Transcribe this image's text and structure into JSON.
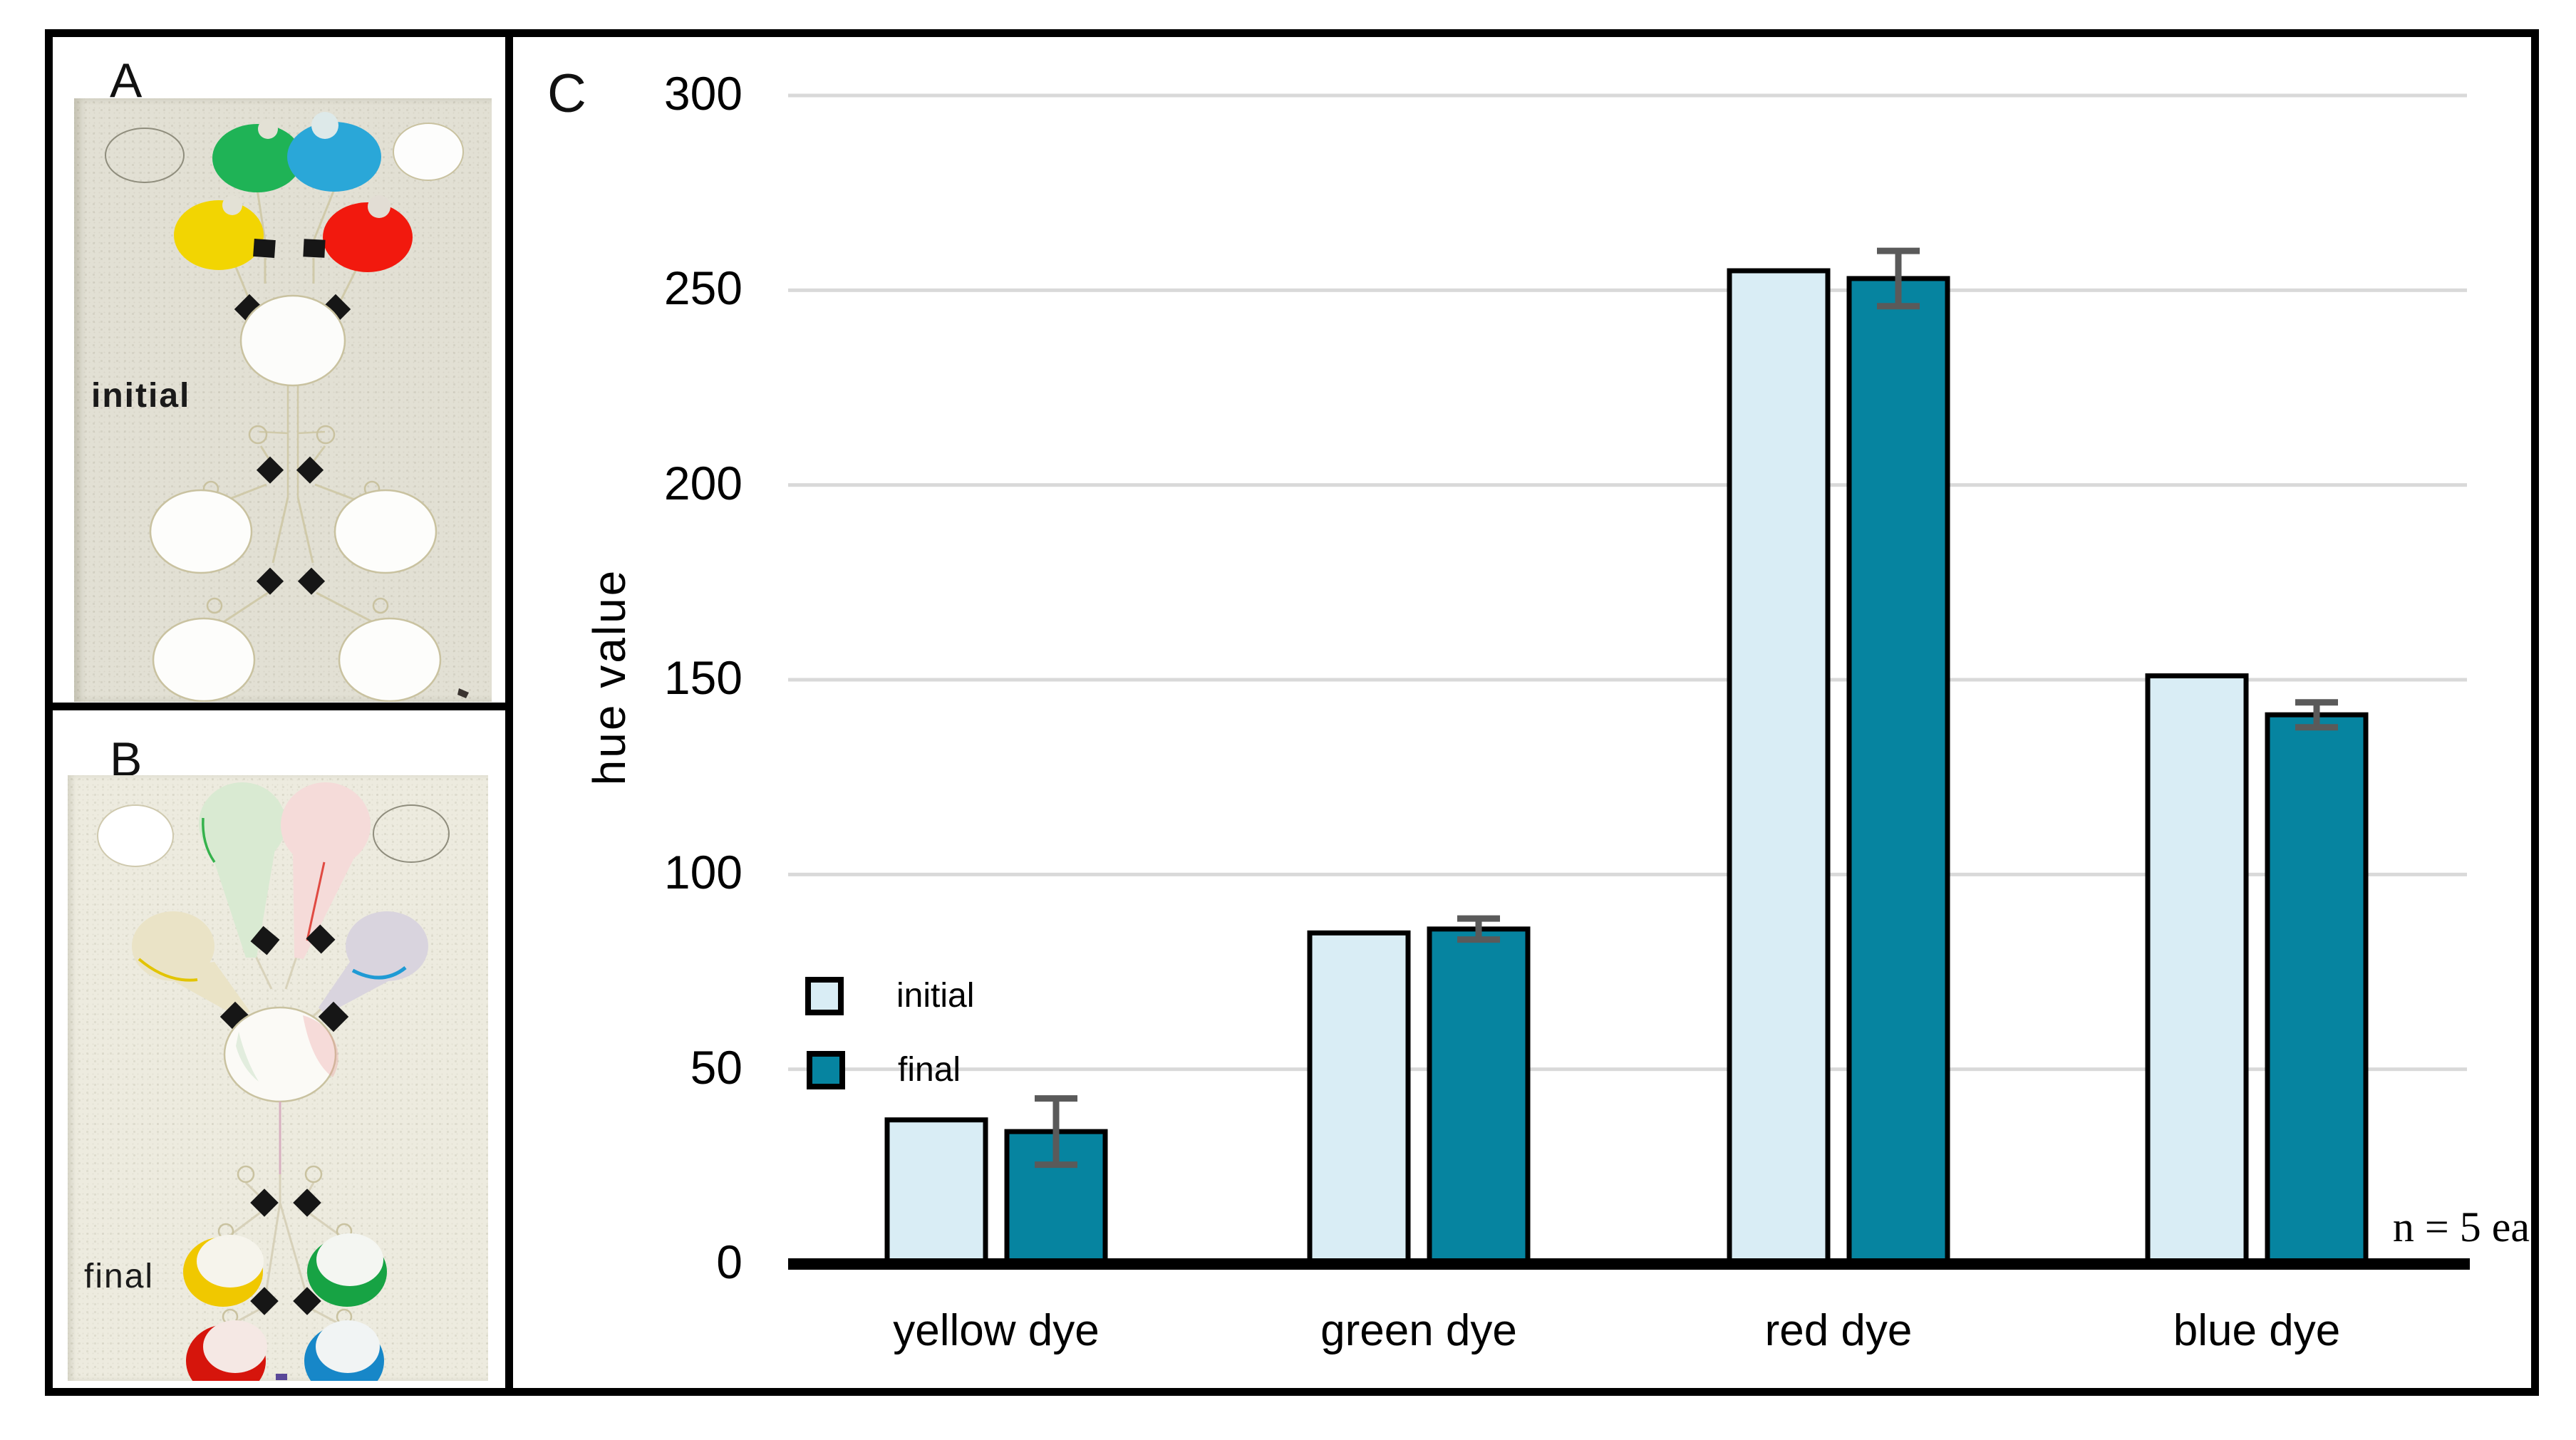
{
  "figure": {
    "panel_a": {
      "label": "A",
      "annotation": "initial",
      "description": "paper microfluidic device scan, initial state",
      "dye_colors": {
        "green": "#1fb356",
        "blue": "#2aa7d8",
        "yellow": "#f2d502",
        "red": "#f2190e"
      }
    },
    "panel_b": {
      "label": "B",
      "annotation": "final",
      "description": "paper microfluidic device scan, final state",
      "dye_colors": {
        "yellow": "#f0c800",
        "green": "#17a344",
        "red": "#d6150c",
        "blue": "#1787c8"
      }
    },
    "panel_c": {
      "label": "C",
      "note": "n = 5 ea",
      "ylabel": "hue value"
    }
  },
  "chart_data": {
    "type": "bar",
    "title": "",
    "categories": [
      "yellow dye",
      "green dye",
      "red dye",
      "blue dye"
    ],
    "series": [
      {
        "name": "initial",
        "color": "#d9edf5",
        "values": [
          37,
          85,
          255,
          151
        ]
      },
      {
        "name": "final",
        "color": "#0684a0",
        "values": [
          34,
          86,
          253,
          141
        ],
        "errors": [
          8.5,
          2.7,
          7.1,
          3.2
        ]
      }
    ],
    "xlabel": "",
    "ylabel": "hue value",
    "ylim": [
      0,
      300
    ],
    "yticks": [
      0,
      50,
      100,
      150,
      200,
      250,
      300
    ],
    "grid": true,
    "gridline_color": "#d9d9d9",
    "bar_border_color": "#000000",
    "error_bar_color": "#5a5a5a",
    "legend_position": "inside-left",
    "annotation": "n = 5 ea"
  }
}
